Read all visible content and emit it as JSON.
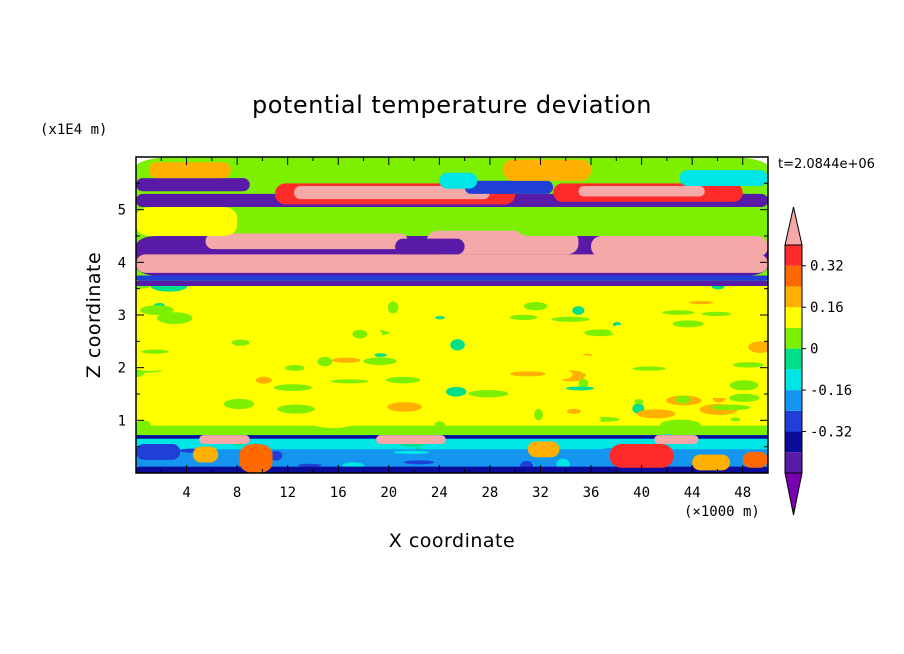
{
  "chart_data": {
    "type": "heatmap",
    "title": "potential temperature deviation",
    "xlabel": "X coordinate",
    "ylabel": "Z coordinate",
    "x_unit": "(×1000 m)",
    "y_unit": "(x1E4 m)",
    "time_label": "t=2.0844e+06",
    "xlim": [
      0,
      50
    ],
    "ylim": [
      0,
      6
    ],
    "x_ticks": [
      "4",
      "8",
      "12",
      "16",
      "20",
      "24",
      "28",
      "32",
      "36",
      "40",
      "44",
      "48"
    ],
    "y_ticks": [
      "1",
      "2",
      "3",
      "4",
      "5"
    ],
    "colorbar": {
      "levels": [
        -0.48,
        -0.4,
        -0.32,
        -0.24,
        -0.16,
        -0.08,
        0,
        0.08,
        0.16,
        0.24,
        0.32,
        0.4
      ],
      "colors": [
        "#7a00b0",
        "#5a1aa8",
        "#0c0c9a",
        "#1f3fd6",
        "#1496f0",
        "#00e5e5",
        "#00e08a",
        "#7cf000",
        "#ffff00",
        "#ffb000",
        "#ff6a00",
        "#ff2a2a",
        "#f4a8a8"
      ],
      "labels": [
        "-0.32",
        "-0.16",
        "0",
        "0.16",
        "0.32"
      ],
      "label_values": [
        -0.32,
        -0.16,
        0,
        0.16,
        0.32
      ],
      "extend": "both"
    },
    "regions": [
      {
        "x": [
          0,
          50
        ],
        "z": [
          0,
          6
        ],
        "value": 0.0
      },
      {
        "x": [
          0,
          50
        ],
        "z": [
          0.9,
          3.55
        ],
        "value": 0.08,
        "pattern": "patchy"
      },
      {
        "x": [
          0,
          50
        ],
        "z": [
          0.0,
          0.72
        ],
        "value": -0.1,
        "pattern": "patchy"
      },
      {
        "x": [
          0,
          50
        ],
        "z": [
          0.0,
          0.45
        ],
        "value": -0.24,
        "pattern": "patchy"
      },
      {
        "x": [
          0,
          50
        ],
        "z": [
          0.65,
          0.72
        ],
        "value": -0.4
      },
      {
        "x": [
          0,
          50
        ],
        "z": [
          0.0,
          0.12
        ],
        "value": -0.4
      },
      {
        "x": [
          0,
          3.5
        ],
        "z": [
          0.25,
          0.55
        ],
        "value": -0.32
      },
      {
        "x": [
          8.2,
          10.8
        ],
        "z": [
          0.0,
          0.55
        ],
        "value": 0.3
      },
      {
        "x": [
          4.5,
          6.5
        ],
        "z": [
          0.2,
          0.5
        ],
        "value": 0.2
      },
      {
        "x": [
          5.0,
          9.0
        ],
        "z": [
          0.55,
          0.72
        ],
        "value": 0.45
      },
      {
        "x": [
          19.0,
          24.5
        ],
        "z": [
          0.55,
          0.72
        ],
        "value": 0.45
      },
      {
        "x": [
          31.0,
          33.5
        ],
        "z": [
          0.3,
          0.6
        ],
        "value": 0.22
      },
      {
        "x": [
          37.5,
          42.5
        ],
        "z": [
          0.1,
          0.55
        ],
        "value": 0.32
      },
      {
        "x": [
          41.0,
          44.5
        ],
        "z": [
          0.55,
          0.72
        ],
        "value": 0.45
      },
      {
        "x": [
          44.0,
          47.0
        ],
        "z": [
          0.05,
          0.35
        ],
        "value": 0.18
      },
      {
        "x": [
          48.0,
          50.0
        ],
        "z": [
          0.1,
          0.4
        ],
        "value": 0.3
      },
      {
        "x": [
          0,
          50
        ],
        "z": [
          3.55,
          3.65
        ],
        "value": -0.48
      },
      {
        "x": [
          0,
          50
        ],
        "z": [
          3.65,
          3.75
        ],
        "value": -0.3
      },
      {
        "x": [
          0,
          50
        ],
        "z": [
          3.75,
          4.5
        ],
        "value": -0.48
      },
      {
        "x": [
          0,
          50
        ],
        "z": [
          3.8,
          4.15
        ],
        "value": 0.45
      },
      {
        "x": [
          5.5,
          21.5
        ],
        "z": [
          4.25,
          4.55
        ],
        "value": 0.45
      },
      {
        "x": [
          23.0,
          35.0
        ],
        "z": [
          4.15,
          4.6
        ],
        "value": 0.45
      },
      {
        "x": [
          36.0,
          50.0
        ],
        "z": [
          4.1,
          4.5
        ],
        "value": 0.45
      },
      {
        "x": [
          20.5,
          26.0
        ],
        "z": [
          4.15,
          4.45
        ],
        "value": -0.48
      },
      {
        "x": [
          0,
          8.0
        ],
        "z": [
          4.5,
          5.05
        ],
        "value": 0.08
      },
      {
        "x": [
          30.0,
          50.0
        ],
        "z": [
          4.5,
          5.05
        ],
        "value": 0.04
      },
      {
        "x": [
          0,
          50
        ],
        "z": [
          5.05,
          5.3
        ],
        "value": -0.48
      },
      {
        "x": [
          11.0,
          30.0
        ],
        "z": [
          5.1,
          5.5
        ],
        "value": 0.35
      },
      {
        "x": [
          12.5,
          28.0
        ],
        "z": [
          5.2,
          5.45
        ],
        "value": 0.45
      },
      {
        "x": [
          33.0,
          48.0
        ],
        "z": [
          5.15,
          5.5
        ],
        "value": 0.35
      },
      {
        "x": [
          35.0,
          45.0
        ],
        "z": [
          5.25,
          5.45
        ],
        "value": 0.45
      },
      {
        "x": [
          0,
          9.0
        ],
        "z": [
          5.35,
          5.6
        ],
        "value": -0.48
      },
      {
        "x": [
          26.0,
          33.0
        ],
        "z": [
          5.3,
          5.55
        ],
        "value": -0.3
      },
      {
        "x": [
          43.0,
          50.0
        ],
        "z": [
          5.45,
          5.75
        ],
        "value": -0.16
      },
      {
        "x": [
          1.0,
          7.5
        ],
        "z": [
          5.6,
          5.9
        ],
        "value": 0.2
      },
      {
        "x": [
          29.0,
          36.0
        ],
        "z": [
          5.55,
          5.95
        ],
        "value": 0.16
      },
      {
        "x": [
          24.0,
          27.0
        ],
        "z": [
          5.4,
          5.7
        ],
        "value": -0.16
      }
    ]
  }
}
